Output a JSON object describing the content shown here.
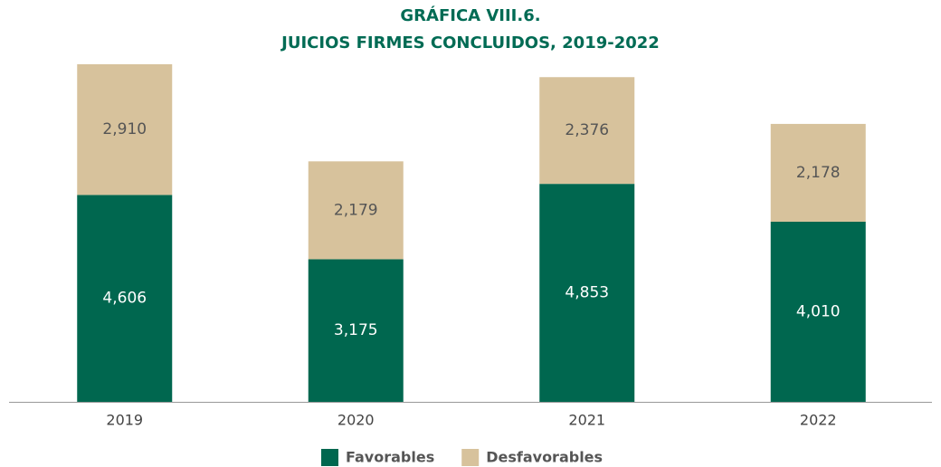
{
  "chart_data": {
    "type": "stacked_bar",
    "title": [
      "GRÁFICA VIII.6.",
      "JUICIOS FIRMES CONCLUIDOS, 2019-2022"
    ],
    "categories": [
      "2019",
      "2020",
      "2021",
      "2022"
    ],
    "series": [
      {
        "name": "Favorables",
        "color": "#00674f",
        "values": [
          4606,
          3175,
          4853,
          4010
        ],
        "value_labels": [
          "4,606",
          "3,175",
          "4,853",
          "4,010"
        ]
      },
      {
        "name": "Desfavorables",
        "color": "#d7c29c",
        "values": [
          2910,
          2179,
          2376,
          2178
        ],
        "value_labels": [
          "2,910",
          "2,179",
          "2,376",
          "2,178"
        ]
      }
    ],
    "legend": "bottom"
  }
}
